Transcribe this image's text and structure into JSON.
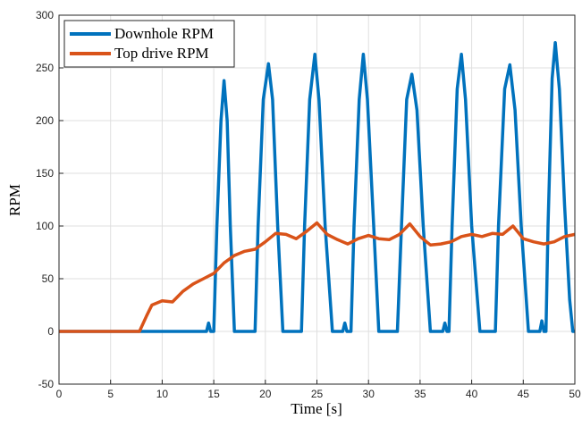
{
  "chart_data": {
    "type": "line",
    "xlabel": "Time [s]",
    "ylabel": "RPM",
    "xlim": [
      0,
      50
    ],
    "xticks": [
      0,
      5,
      10,
      15,
      20,
      25,
      30,
      35,
      40,
      45,
      50
    ],
    "ylim": [
      -50,
      300
    ],
    "yticks": [
      -50,
      0,
      50,
      100,
      150,
      200,
      250,
      300
    ],
    "grid": true,
    "legend": "top-left",
    "series": [
      {
        "name": "Downhole RPM",
        "color": "#0072bd",
        "x": [
          0,
          14.3,
          14.5,
          14.7,
          15.0,
          15.3,
          15.7,
          16.0,
          16.3,
          16.6,
          17.0,
          19.0,
          19.3,
          19.8,
          20.3,
          20.7,
          21.2,
          21.7,
          23.5,
          23.8,
          24.3,
          24.8,
          25.2,
          25.8,
          26.5,
          27.5,
          27.7,
          27.9,
          28.3,
          28.6,
          29.1,
          29.5,
          29.9,
          30.5,
          31.0,
          32.8,
          33.2,
          33.7,
          34.2,
          34.7,
          35.3,
          36.0,
          37.2,
          37.4,
          37.6,
          37.8,
          38.1,
          38.6,
          39.0,
          39.4,
          40.0,
          40.8,
          42.3,
          42.6,
          43.2,
          43.7,
          44.2,
          44.8,
          45.5,
          46.6,
          46.8,
          47.0,
          47.2,
          47.4,
          47.8,
          48.1,
          48.5,
          49.0,
          49.5,
          49.8,
          50
        ],
        "values": [
          0,
          0,
          8,
          0,
          0,
          100,
          200,
          238,
          200,
          100,
          0,
          0,
          100,
          220,
          254,
          220,
          100,
          0,
          0,
          100,
          220,
          263,
          220,
          100,
          0,
          0,
          8,
          0,
          0,
          100,
          220,
          263,
          220,
          100,
          0,
          0,
          100,
          220,
          244,
          210,
          100,
          0,
          0,
          8,
          0,
          0,
          100,
          230,
          263,
          220,
          100,
          0,
          0,
          100,
          230,
          253,
          210,
          100,
          0,
          0,
          10,
          0,
          0,
          100,
          240,
          274,
          230,
          120,
          30,
          0,
          0
        ]
      },
      {
        "name": "Top drive RPM",
        "color": "#d95319",
        "x": [
          0,
          7.8,
          8.5,
          9,
          10,
          11,
          11.5,
          12,
          13,
          14,
          15,
          16,
          17,
          18,
          19,
          20,
          21,
          22,
          23,
          24,
          25,
          26,
          27,
          28,
          29,
          30,
          31,
          32,
          33,
          34,
          35,
          36,
          37,
          38,
          39,
          40,
          41,
          42,
          43,
          44,
          45,
          46,
          47,
          48,
          49,
          50
        ],
        "values": [
          0,
          0,
          15,
          25,
          29,
          28,
          33,
          38,
          45,
          50,
          55,
          65,
          72,
          76,
          78,
          85,
          93,
          92,
          88,
          95,
          103,
          92,
          87,
          83,
          88,
          91,
          88,
          87,
          92,
          102,
          90,
          82,
          83,
          85,
          90,
          92,
          90,
          93,
          92,
          100,
          88,
          85,
          83,
          85,
          90,
          92
        ]
      }
    ]
  }
}
